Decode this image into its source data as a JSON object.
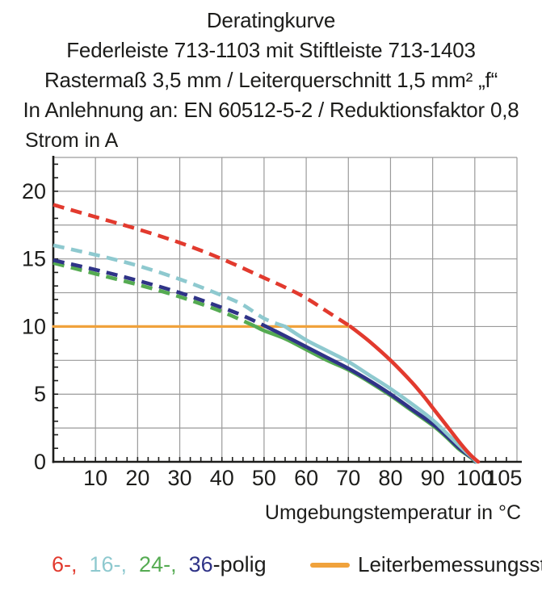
{
  "title": {
    "line1": "Deratingkurve",
    "line2": "Federleiste 713-1103 mit Stiftleiste 713-1403",
    "line3": "Rastermaß 3,5 mm / Leiterquerschnitt 1,5 mm² „f“",
    "line4": "In Anlehnung an: EN 60512-5-2 / Reduktionsfaktor 0,8"
  },
  "chart_data": {
    "type": "line",
    "title": "Deratingkurve",
    "xlabel": "Umgebungstemperatur in °C",
    "ylabel": "Strom in A",
    "xlim": [
      0,
      110
    ],
    "ylim": [
      0,
      22.5
    ],
    "x_major_tick_labels": [
      10,
      20,
      30,
      40,
      50,
      60,
      70,
      80,
      90,
      100,
      105
    ],
    "x_grid_step": 10,
    "y_major_tick_labels": [
      0,
      5,
      10,
      15,
      20
    ],
    "y_grid_step": 2.5,
    "x_minor_tick_step": 2.5,
    "y_minor_tick_step": 1,
    "grid_color": "#9a9a9a",
    "axis_color": "#1d1d1b",
    "series": [
      {
        "name": "Leiterbemessungsstrom",
        "color": "#f0a23c",
        "dashed_until_x": null,
        "width": 3.2,
        "points": [
          [
            0,
            10
          ],
          [
            70.5,
            10
          ]
        ]
      },
      {
        "name": "24-polig",
        "color": "#55ab52",
        "dashed_until_x": 48,
        "width": 4.6,
        "points": [
          [
            0,
            14.7
          ],
          [
            10,
            13.9
          ],
          [
            20,
            13.1
          ],
          [
            30,
            12.2
          ],
          [
            40,
            11.1
          ],
          [
            48,
            10.0
          ],
          [
            50,
            9.7
          ],
          [
            55,
            9.1
          ],
          [
            60,
            8.3
          ],
          [
            65,
            7.5
          ],
          [
            70,
            6.8
          ],
          [
            75,
            5.9
          ],
          [
            80,
            4.9
          ],
          [
            85,
            3.8
          ],
          [
            90,
            2.7
          ],
          [
            93,
            1.9
          ],
          [
            96,
            1.0
          ],
          [
            98,
            0.55
          ],
          [
            99.5,
            0.2
          ],
          [
            100.1,
            0
          ]
        ]
      },
      {
        "name": "36-polig",
        "color": "#2f3387",
        "dashed_until_x": 50.5,
        "width": 4.6,
        "points": [
          [
            0,
            14.9
          ],
          [
            10,
            14.2
          ],
          [
            20,
            13.4
          ],
          [
            30,
            12.5
          ],
          [
            40,
            11.4
          ],
          [
            45,
            10.8
          ],
          [
            50.5,
            10.0
          ],
          [
            55,
            9.3
          ],
          [
            60,
            8.5
          ],
          [
            65,
            7.7
          ],
          [
            70,
            6.9
          ],
          [
            75,
            6.0
          ],
          [
            80,
            5.0
          ],
          [
            85,
            3.9
          ],
          [
            90,
            2.8
          ],
          [
            93,
            2.0
          ],
          [
            96,
            1.1
          ],
          [
            98,
            0.6
          ],
          [
            99.5,
            0.25
          ],
          [
            100.2,
            0
          ]
        ]
      },
      {
        "name": "16-polig",
        "color": "#8ec9cf",
        "dashed_until_x": 55,
        "width": 4.6,
        "points": [
          [
            0,
            16.0
          ],
          [
            10,
            15.3
          ],
          [
            20,
            14.5
          ],
          [
            30,
            13.5
          ],
          [
            40,
            12.3
          ],
          [
            45,
            11.6
          ],
          [
            50,
            10.6
          ],
          [
            55,
            10.0
          ],
          [
            60,
            9.0
          ],
          [
            65,
            8.2
          ],
          [
            70,
            7.4
          ],
          [
            75,
            6.4
          ],
          [
            80,
            5.4
          ],
          [
            85,
            4.3
          ],
          [
            90,
            3.1
          ],
          [
            93,
            2.2
          ],
          [
            96,
            1.3
          ],
          [
            98,
            0.7
          ],
          [
            99.5,
            0.3
          ],
          [
            100.4,
            0
          ]
        ]
      },
      {
        "name": "6-polig",
        "color": "#e23a2e",
        "dashed_until_x": 70.5,
        "width": 4.6,
        "points": [
          [
            0,
            19.0
          ],
          [
            10,
            18.1
          ],
          [
            20,
            17.2
          ],
          [
            30,
            16.2
          ],
          [
            40,
            15.0
          ],
          [
            50,
            13.6
          ],
          [
            55,
            12.9
          ],
          [
            60,
            12.1
          ],
          [
            65,
            11.1
          ],
          [
            70.5,
            10.0
          ],
          [
            75,
            8.9
          ],
          [
            80,
            7.5
          ],
          [
            85,
            5.9
          ],
          [
            88,
            4.8
          ],
          [
            90,
            4.0
          ],
          [
            93,
            2.8
          ],
          [
            95,
            2.0
          ],
          [
            97,
            1.2
          ],
          [
            99,
            0.5
          ],
          [
            100.8,
            0
          ]
        ]
      }
    ]
  },
  "legend": {
    "poles": {
      "items": [
        {
          "label": "6-,",
          "color": "#e23a2e"
        },
        {
          "label": "16-,",
          "color": "#8ec9cf"
        },
        {
          "label": "24-,",
          "color": "#55ab52"
        },
        {
          "label": "36",
          "color": "#2f3387"
        }
      ],
      "suffix": "-polig"
    },
    "rated": {
      "label": "Leiterbemessungsstrom",
      "color": "#f0a23c"
    }
  }
}
